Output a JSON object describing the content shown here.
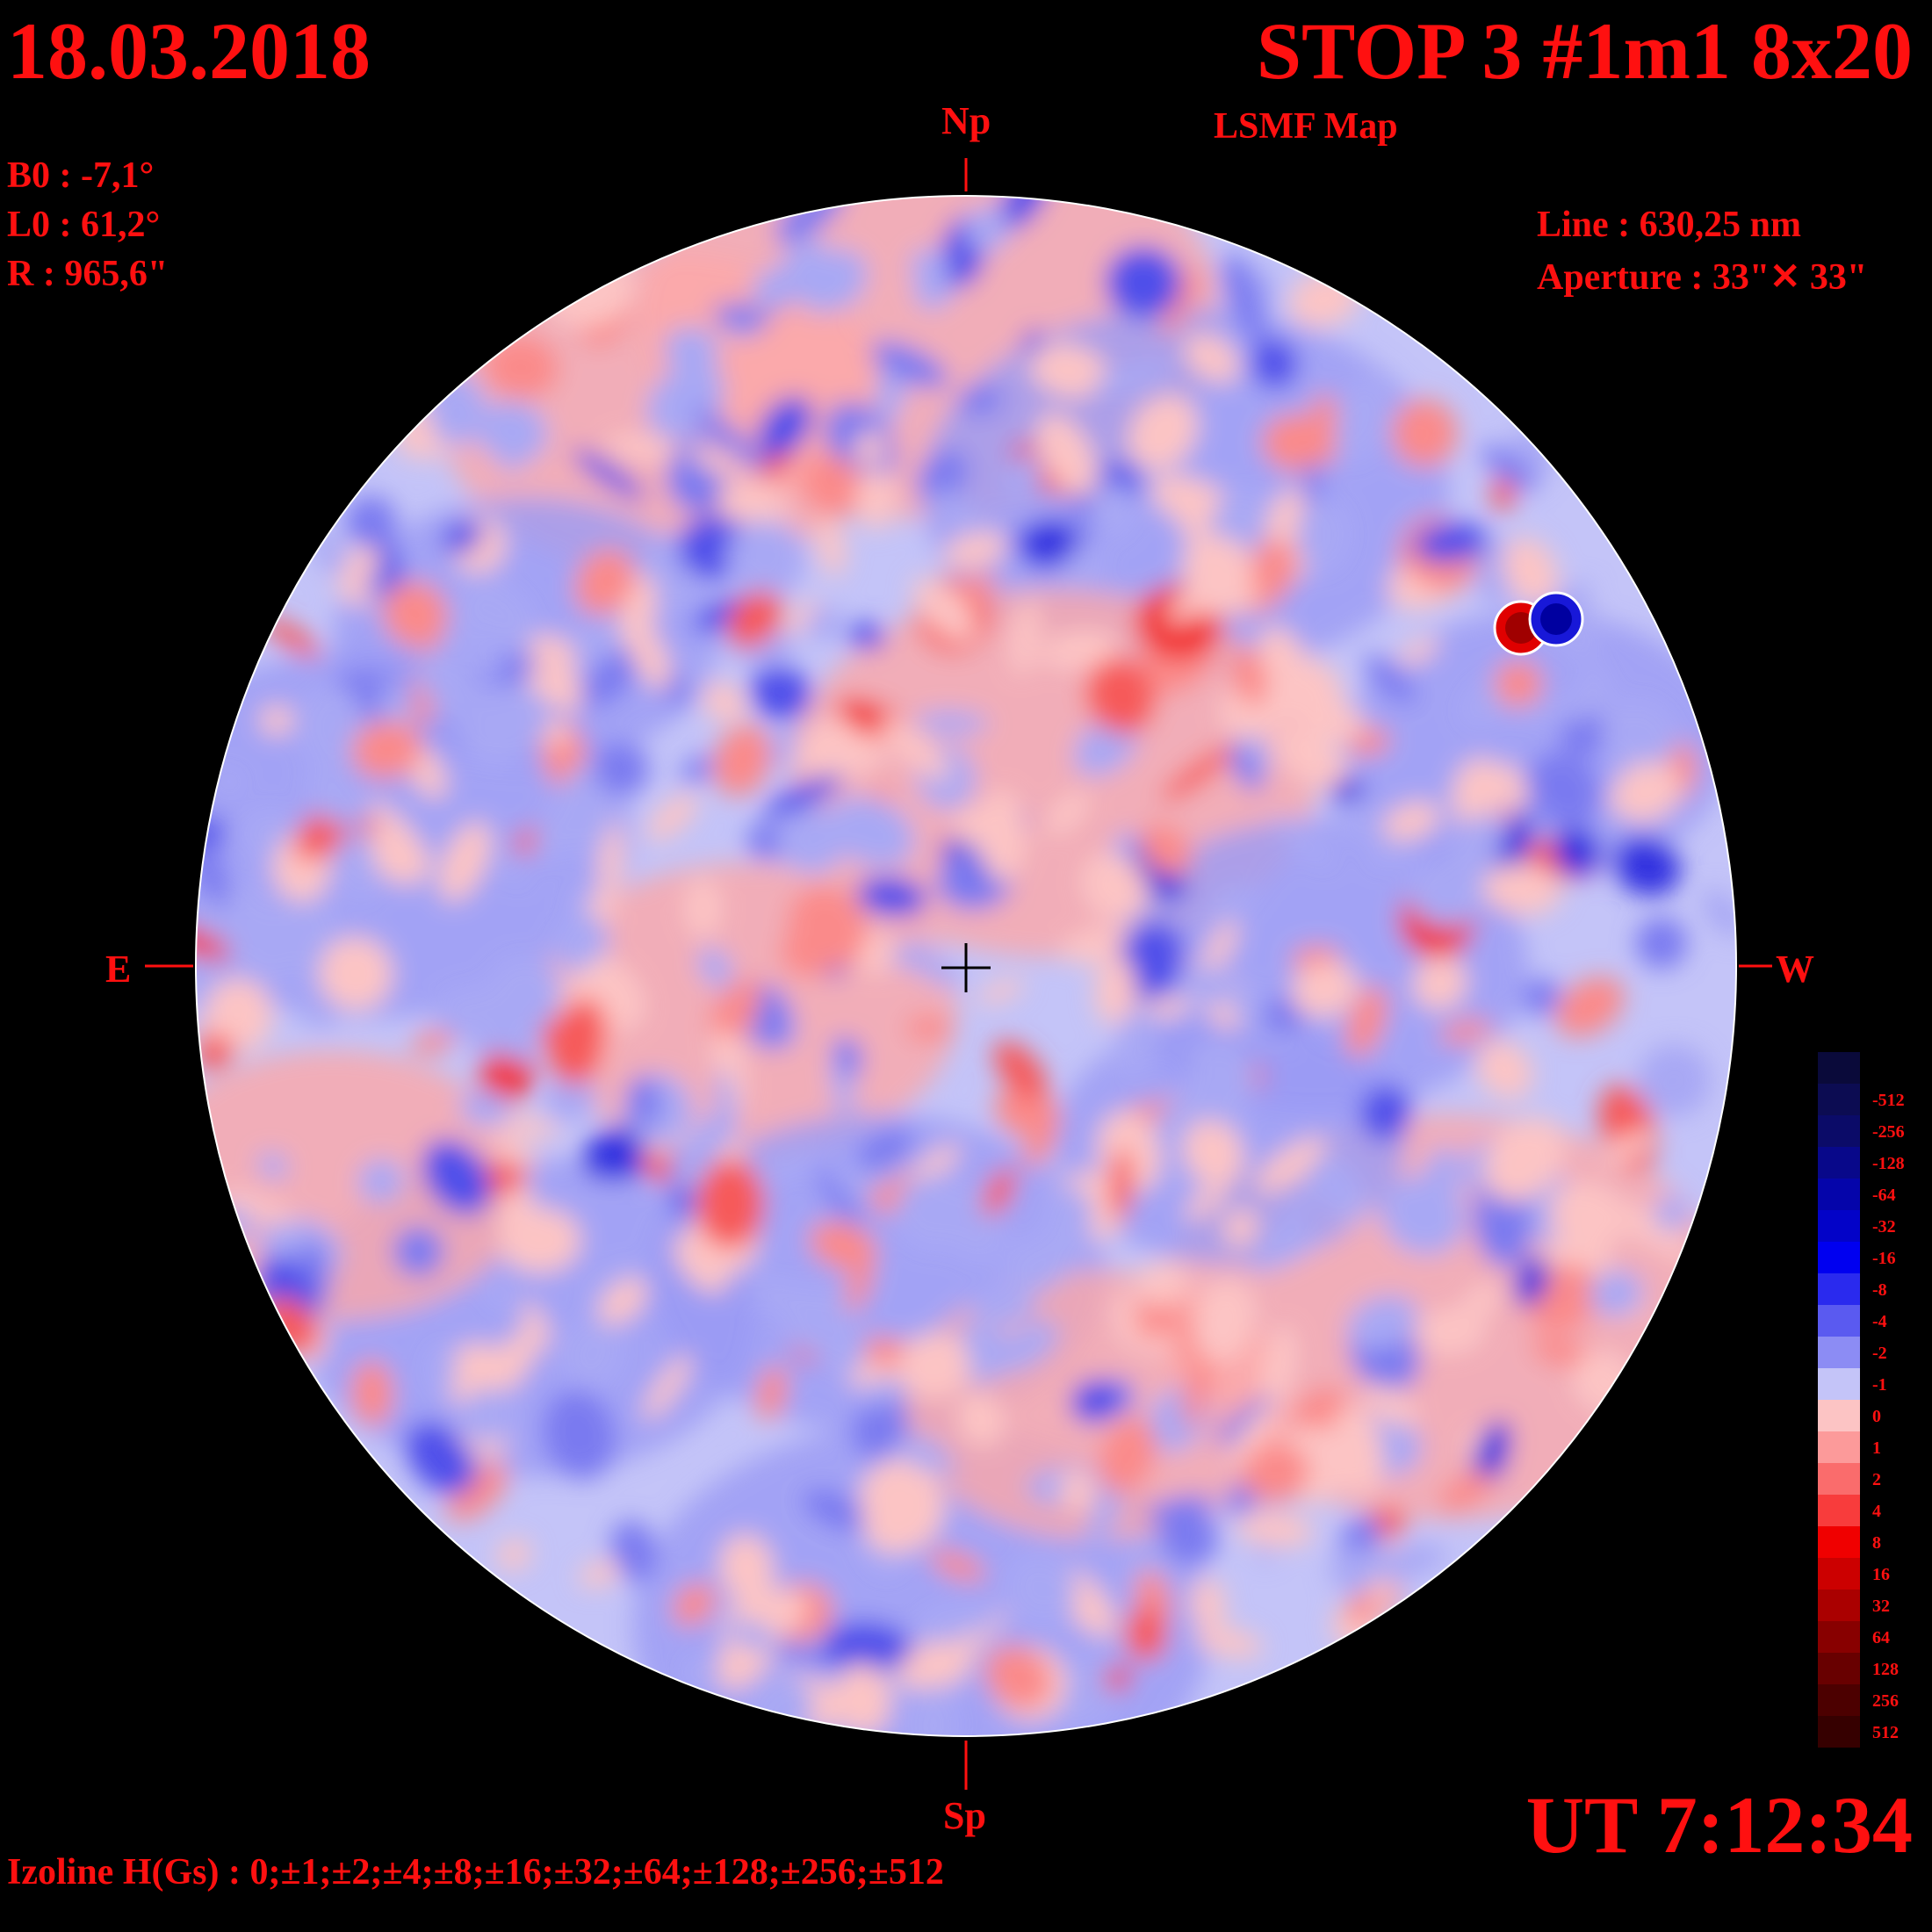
{
  "header": {
    "date": "18.03.2018",
    "title": "STOP 3 #1m1 8x20",
    "subtitle": "LSMF  Map"
  },
  "parameters": {
    "b0": "B0 : -7,1°",
    "l0": "L0 : 61,2°",
    "r": "R  : 965,6\""
  },
  "instrument": {
    "line": "Line :  630,25 nm",
    "aperture": "Aperture : 33\"✕ 33\""
  },
  "orientation": {
    "north": "Np",
    "south": "Sp",
    "east": "E",
    "west": "W"
  },
  "time": "UT 7:12:34",
  "izoline": "Izoline H(Gs) : 0;±1;±2;±4;±8;±16;±32;±64;±128;±256;±512",
  "colorbar": {
    "levels": [
      {
        "label": "",
        "color": "#0a0a3a"
      },
      {
        "label": "-512",
        "color": "#0c0c52"
      },
      {
        "label": "-256",
        "color": "#0b0b68"
      },
      {
        "label": "-128",
        "color": "#08088a"
      },
      {
        "label": "-64",
        "color": "#0505aa"
      },
      {
        "label": "-32",
        "color": "#0303c8"
      },
      {
        "label": "-16",
        "color": "#0000f0"
      },
      {
        "label": "-8",
        "color": "#2a2aee"
      },
      {
        "label": "-4",
        "color": "#5a5af0"
      },
      {
        "label": "-2",
        "color": "#8c8cf4"
      },
      {
        "label": "-1",
        "color": "#c4c4f8"
      },
      {
        "label": "0",
        "color": "#fcc4c4"
      },
      {
        "label": "1",
        "color": "#fc9a9a"
      },
      {
        "label": "2",
        "color": "#fa6c6c"
      },
      {
        "label": "4",
        "color": "#f83c3c"
      },
      {
        "label": "8",
        "color": "#f00000"
      },
      {
        "label": "16",
        "color": "#cc0000"
      },
      {
        "label": "32",
        "color": "#aa0000"
      },
      {
        "label": "64",
        "color": "#880000"
      },
      {
        "label": "128",
        "color": "#680000"
      },
      {
        "label": "256",
        "color": "#4c0000"
      },
      {
        "label": "512",
        "color": "#360000"
      }
    ]
  },
  "colors": {
    "text": "#ff1010",
    "background": "#000000",
    "neutral_positive": "#fcc4c4",
    "neutral_negative": "#c4c4f8"
  }
}
